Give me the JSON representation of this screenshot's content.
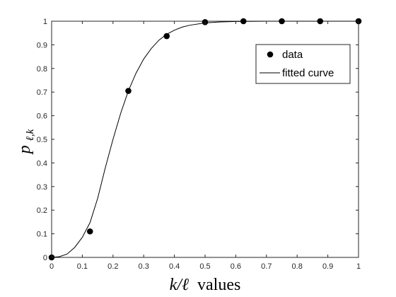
{
  "chart_data": {
    "type": "scatter",
    "xlabel_math": "k/ℓ",
    "xlabel_word": "values",
    "ylabel_main": "p",
    "ylabel_sub": "ℓ,k",
    "xlim": [
      0,
      1
    ],
    "ylim": [
      0,
      1
    ],
    "x_ticks": [
      "0",
      "0.1",
      "0.2",
      "0.3",
      "0.4",
      "0.5",
      "0.6",
      "0.7",
      "0.8",
      "0.9",
      "1"
    ],
    "y_ticks": [
      "0",
      "0.1",
      "0.2",
      "0.3",
      "0.4",
      "0.5",
      "0.6",
      "0.7",
      "0.8",
      "0.9",
      "1"
    ],
    "grid": false,
    "legend_position": "top-right",
    "series": [
      {
        "name": "data",
        "kind": "scatter",
        "color": "#000000",
        "x": [
          0,
          0.125,
          0.25,
          0.375,
          0.5,
          0.625,
          0.75,
          0.875,
          1
        ],
        "y": [
          0,
          0.11,
          0.705,
          0.937,
          0.996,
          1,
          1,
          1,
          1
        ]
      },
      {
        "name": "fitted curve",
        "kind": "line",
        "color": "#000000",
        "x": [
          0,
          0.025,
          0.05,
          0.075,
          0.1,
          0.125,
          0.15,
          0.175,
          0.2,
          0.225,
          0.25,
          0.275,
          0.3,
          0.325,
          0.35,
          0.375,
          0.4,
          0.425,
          0.45,
          0.5,
          0.55,
          0.6,
          0.7,
          0.8,
          0.9,
          1
        ],
        "y": [
          0,
          0.003,
          0.014,
          0.042,
          0.085,
          0.147,
          0.25,
          0.38,
          0.5,
          0.61,
          0.705,
          0.78,
          0.84,
          0.885,
          0.92,
          0.945,
          0.962,
          0.975,
          0.983,
          0.993,
          0.997,
          0.999,
          1,
          1,
          1,
          1
        ]
      }
    ]
  }
}
